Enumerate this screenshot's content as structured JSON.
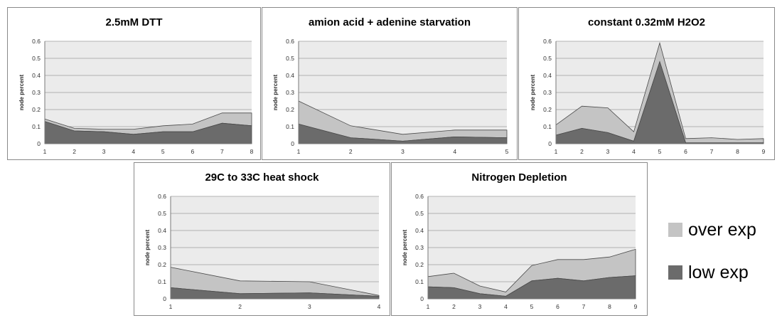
{
  "colors": {
    "plot_bg": "#ebebeb",
    "grid": "#9e9e9e",
    "axis": "#7a7a7a",
    "over_fill": "#c4c4c4",
    "low_fill": "#6b6b6b",
    "line": "#4a4a4a"
  },
  "legend": {
    "items": [
      {
        "label": "over exp",
        "color": "#c4c4c4"
      },
      {
        "label": "low exp",
        "color": "#6b6b6b"
      }
    ]
  },
  "chart_data": [
    {
      "type": "area",
      "stacked": true,
      "title": "2.5mM DTT",
      "ylabel": "node percent",
      "xlabel": "",
      "ylim": [
        0,
        0.6
      ],
      "yticks": [
        "0",
        "0.1",
        "0.2",
        "0.3",
        "0.4",
        "0.5",
        "0.6"
      ],
      "x": [
        "1",
        "2",
        "3",
        "4",
        "5",
        "6",
        "7",
        "8"
      ],
      "series": [
        {
          "name": "low exp",
          "values": [
            0.13,
            0.075,
            0.07,
            0.055,
            0.07,
            0.07,
            0.12,
            0.105
          ]
        },
        {
          "name": "over exp",
          "values": [
            0.015,
            0.015,
            0.015,
            0.03,
            0.035,
            0.045,
            0.06,
            0.075
          ]
        }
      ],
      "grid": true
    },
    {
      "type": "area",
      "stacked": true,
      "title": "amion acid + adenine starvation",
      "ylabel": "node percent",
      "xlabel": "",
      "ylim": [
        0,
        0.6
      ],
      "yticks": [
        "0",
        "0.1",
        "0.2",
        "0.3",
        "0.4",
        "0.5",
        "0.6"
      ],
      "x": [
        "1",
        "2",
        "3",
        "4",
        "5"
      ],
      "series": [
        {
          "name": "low exp",
          "values": [
            0.115,
            0.035,
            0.015,
            0.04,
            0.035
          ]
        },
        {
          "name": "over exp",
          "values": [
            0.135,
            0.07,
            0.04,
            0.04,
            0.045
          ]
        }
      ],
      "grid": true
    },
    {
      "type": "area",
      "stacked": true,
      "title": "constant 0.32mM H2O2",
      "ylabel": "node percent",
      "xlabel": "",
      "ylim": [
        0,
        0.6
      ],
      "yticks": [
        "0",
        "0.1",
        "0.2",
        "0.3",
        "0.4",
        "0.5",
        "0.6"
      ],
      "x": [
        "1",
        "2",
        "3",
        "4",
        "5",
        "6",
        "7",
        "8",
        "9"
      ],
      "series": [
        {
          "name": "low exp",
          "values": [
            0.05,
            0.09,
            0.065,
            0.015,
            0.48,
            0.005,
            0.005,
            0.005,
            0.005
          ]
        },
        {
          "name": "over exp",
          "values": [
            0.06,
            0.13,
            0.145,
            0.055,
            0.11,
            0.025,
            0.03,
            0.02,
            0.025
          ]
        }
      ],
      "grid": true
    },
    {
      "type": "area",
      "stacked": true,
      "title": "29C to 33C heat shock",
      "ylabel": "node percent",
      "xlabel": "",
      "ylim": [
        0,
        0.6
      ],
      "yticks": [
        "0",
        "0.1",
        "0.2",
        "0.3",
        "0.4",
        "0.5",
        "0.6"
      ],
      "x": [
        "1",
        "2",
        "3",
        "4"
      ],
      "series": [
        {
          "name": "low exp",
          "values": [
            0.065,
            0.03,
            0.035,
            0.015
          ]
        },
        {
          "name": "over exp",
          "values": [
            0.12,
            0.075,
            0.065,
            0.005
          ]
        }
      ],
      "grid": true
    },
    {
      "type": "area",
      "stacked": true,
      "title": "Nitrogen Depletion",
      "ylabel": "node percent",
      "xlabel": "",
      "ylim": [
        0,
        0.6
      ],
      "yticks": [
        "0",
        "0.1",
        "0.2",
        "0.3",
        "0.4",
        "0.5",
        "0.6"
      ],
      "x": [
        "1",
        "2",
        "3",
        "4",
        "5",
        "6",
        "7",
        "8",
        "9"
      ],
      "series": [
        {
          "name": "low exp",
          "values": [
            0.07,
            0.065,
            0.03,
            0.015,
            0.105,
            0.12,
            0.105,
            0.125,
            0.135
          ]
        },
        {
          "name": "over exp",
          "values": [
            0.06,
            0.085,
            0.045,
            0.025,
            0.09,
            0.11,
            0.125,
            0.12,
            0.155
          ]
        }
      ],
      "grid": true
    }
  ]
}
